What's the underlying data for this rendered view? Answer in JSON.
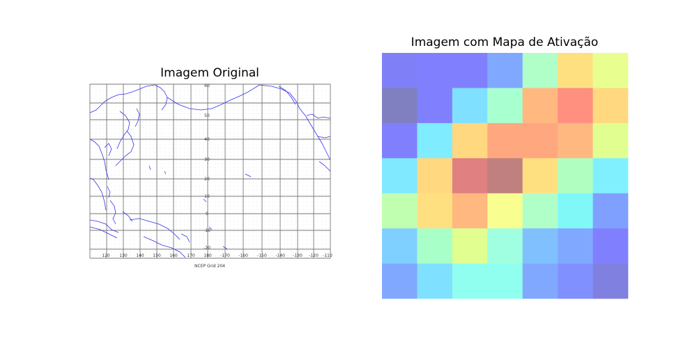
{
  "left": {
    "title": "Imagem Original",
    "map": {
      "caption": "NCEP Grid 204",
      "lon_labels": [
        "120",
        "130",
        "140",
        "150",
        "160",
        "170",
        "180",
        "-170",
        "-160",
        "-150",
        "-140",
        "-130",
        "-120",
        "-110"
      ],
      "lat_labels": [
        "60",
        "50",
        "40",
        "30",
        "20",
        "10",
        "0",
        "-10",
        "-20"
      ],
      "coast_color": "#3333ee",
      "grid_color": "#777777"
    }
  },
  "right": {
    "title": "Imagem com Mapa de Ativação",
    "chart_data": {
      "type": "heatmap",
      "title": "Imagem com Mapa de Ativação",
      "rows": 7,
      "cols": 7,
      "colors": [
        [
          "#7f80f7",
          "#8080ff",
          "#8080ff",
          "#80a8ff",
          "#b0ffc8",
          "#ffe080",
          "#e8ff90"
        ],
        [
          "#8080c0",
          "#8080ff",
          "#80e0ff",
          "#a8ffd0",
          "#ffb880",
          "#ff9080",
          "#ffd880"
        ],
        [
          "#8080ff",
          "#80ecff",
          "#ffd880",
          "#ffa880",
          "#ffa880",
          "#ffb880",
          "#e0ff90"
        ],
        [
          "#80e8ff",
          "#ffd880",
          "#e08080",
          "#c08080",
          "#ffe080",
          "#b0ffc0",
          "#80f0ff"
        ],
        [
          "#c0ffb0",
          "#ffe080",
          "#ffb880",
          "#f8ff90",
          "#b0ffc8",
          "#80f8f8",
          "#80a0ff"
        ],
        [
          "#80d0ff",
          "#a8ffc8",
          "#e0ff90",
          "#a0ffe0",
          "#80c0ff",
          "#80a8ff",
          "#8080ff"
        ],
        [
          "#80a8ff",
          "#80e0ff",
          "#90fff0",
          "#90fff0",
          "#80a8ff",
          "#8090ff",
          "#8080e0"
        ]
      ],
      "grid": false,
      "axes_visible": false
    }
  }
}
